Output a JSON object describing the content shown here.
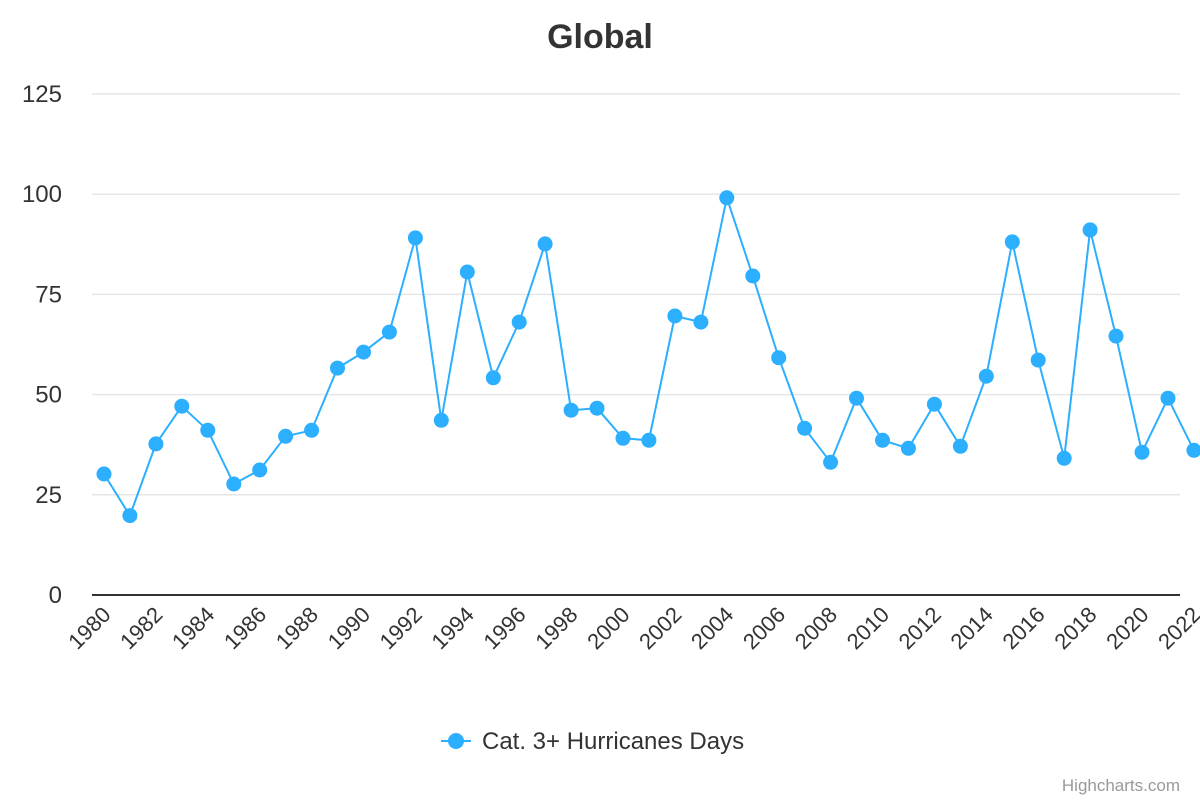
{
  "chart_data": {
    "type": "line",
    "title": "Global",
    "xlabel": "",
    "ylabel": "",
    "ylim": [
      0,
      125
    ],
    "yticks": [
      "0",
      "25",
      "50",
      "75",
      "100",
      "125"
    ],
    "ytick_values": [
      0,
      25,
      50,
      75,
      100,
      125
    ],
    "x": [
      1980,
      1981,
      1982,
      1983,
      1984,
      1985,
      1986,
      1987,
      1988,
      1989,
      1990,
      1991,
      1992,
      1993,
      1994,
      1995,
      1996,
      1997,
      1998,
      1999,
      2000,
      2001,
      2002,
      2003,
      2004,
      2005,
      2006,
      2007,
      2008,
      2009,
      2010,
      2011,
      2012,
      2013,
      2014,
      2015,
      2016,
      2017,
      2018,
      2019,
      2020,
      2021,
      2022
    ],
    "xticks": [
      "1980",
      "1982",
      "1984",
      "1986",
      "1988",
      "1990",
      "1992",
      "1994",
      "1996",
      "1998",
      "2000",
      "2002",
      "2004",
      "2006",
      "2008",
      "2010",
      "2012",
      "2014",
      "2016",
      "2018",
      "2020",
      "2022"
    ],
    "series": [
      {
        "name": "Cat. 3+ Hurricanes Days",
        "color": "#2caffe",
        "values": [
          30.2,
          19.8,
          37.7,
          47.1,
          41.1,
          27.7,
          31.2,
          39.6,
          41.1,
          56.6,
          60.6,
          65.6,
          89.1,
          43.6,
          80.6,
          54.2,
          68.1,
          87.6,
          46.1,
          46.6,
          39.1,
          38.6,
          69.6,
          68.1,
          99.1,
          79.6,
          59.2,
          41.6,
          33.1,
          49.1,
          38.6,
          36.6,
          47.6,
          37.1,
          54.6,
          88.1,
          58.6,
          34.1,
          91.1,
          64.6,
          35.6,
          49.1,
          36.1
        ]
      }
    ],
    "grid": true,
    "legend": "bottom-center"
  },
  "credits": "Highcharts.com",
  "colors": {
    "series": "#2caffe",
    "grid": "#e6e6e6",
    "axis": "#333333",
    "text": "#333333",
    "credits": "#999999"
  }
}
